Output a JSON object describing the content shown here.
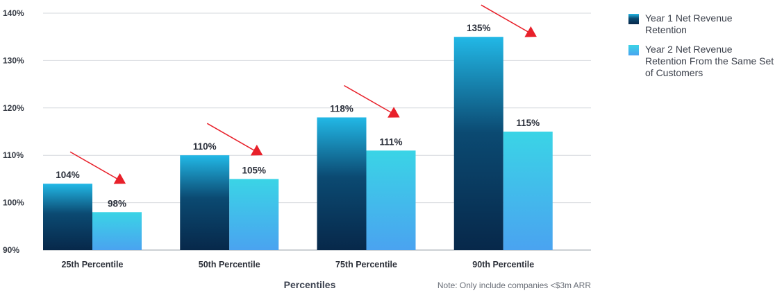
{
  "chart_data": {
    "type": "bar",
    "categories": [
      "25th Percentile",
      "50th Percentile",
      "75th Percentile",
      "90th Percentile"
    ],
    "series": [
      {
        "name": "Year 1 Net Revenue Retention",
        "values": [
          104,
          110,
          118,
          135
        ],
        "labels": [
          "104%",
          "110%",
          "118%",
          "135%"
        ]
      },
      {
        "name": "Year 2 Net Revenue Retention From the Same Set of Customers",
        "values": [
          98,
          105,
          111,
          115
        ],
        "labels": [
          "98%",
          "105%",
          "111%",
          "115%"
        ]
      }
    ],
    "ylim": [
      90,
      140
    ],
    "yticks": [
      90,
      100,
      110,
      120,
      130,
      140
    ],
    "ytick_labels": [
      "90%",
      "100%",
      "110%",
      "120%",
      "130%",
      "140%"
    ],
    "xlabel": "Percentiles",
    "ylabel": "",
    "grid": true,
    "legend_position": "right",
    "annotations": {
      "note": "Note: Only include companies <$3m ARR",
      "arrows": "red downward arrows from Year 1 to Year 2 bar in each group"
    },
    "colors": {
      "series1_top": "#22b8e6",
      "series1_bottom": "#07284a",
      "series2_top": "#3ad4e6",
      "series2_bottom": "#4aa3f0",
      "arrow": "#e8202a",
      "grid": "#d6d9de"
    }
  }
}
